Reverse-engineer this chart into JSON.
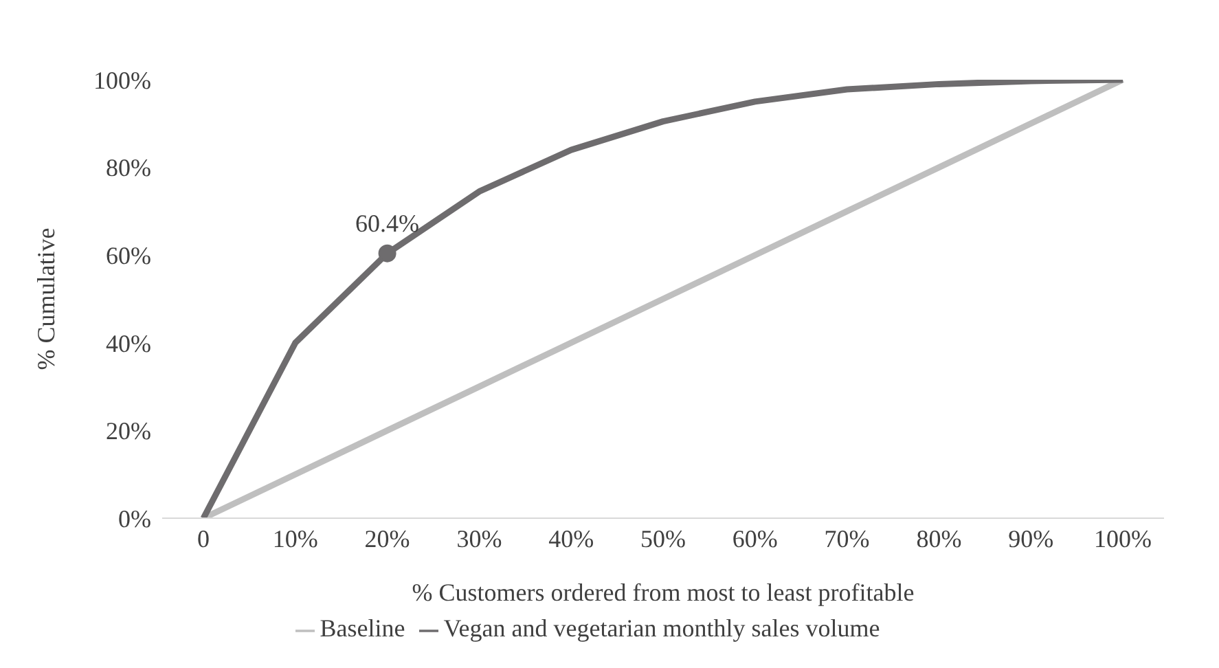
{
  "chart_data": {
    "type": "line",
    "xlabel": "%  Customers ordered from most to least profitable",
    "ylabel": "% Cumulative",
    "categories": [
      "0",
      "10%",
      "20%",
      "30%",
      "40%",
      "50%",
      "60%",
      "70%",
      "80%",
      "90%",
      "100%"
    ],
    "series": [
      {
        "name": "Baseline",
        "color": "#bfbfbf",
        "values": [
          0,
          10,
          20,
          30,
          40,
          50,
          60,
          70,
          80,
          90,
          100
        ]
      },
      {
        "name": "Vegan and vegetarian monthly sales volume",
        "color": "#6e6c6e",
        "values": [
          0,
          40,
          60.4,
          74.5,
          84,
          90.5,
          95,
          97.8,
          99,
          99.7,
          100
        ]
      }
    ],
    "ylim": [
      0,
      100
    ],
    "yticks": [
      {
        "value": 0,
        "label": "0%"
      },
      {
        "value": 20,
        "label": "20%"
      },
      {
        "value": 40,
        "label": "40%"
      },
      {
        "value": 60,
        "label": "60%"
      },
      {
        "value": 80,
        "label": "80%"
      },
      {
        "value": 100,
        "label": "100%"
      }
    ],
    "annotations": [
      {
        "text": "60.4%",
        "x": "20%",
        "y": 60.4
      }
    ],
    "legend": "bottom",
    "marker": "none",
    "grid": false
  }
}
